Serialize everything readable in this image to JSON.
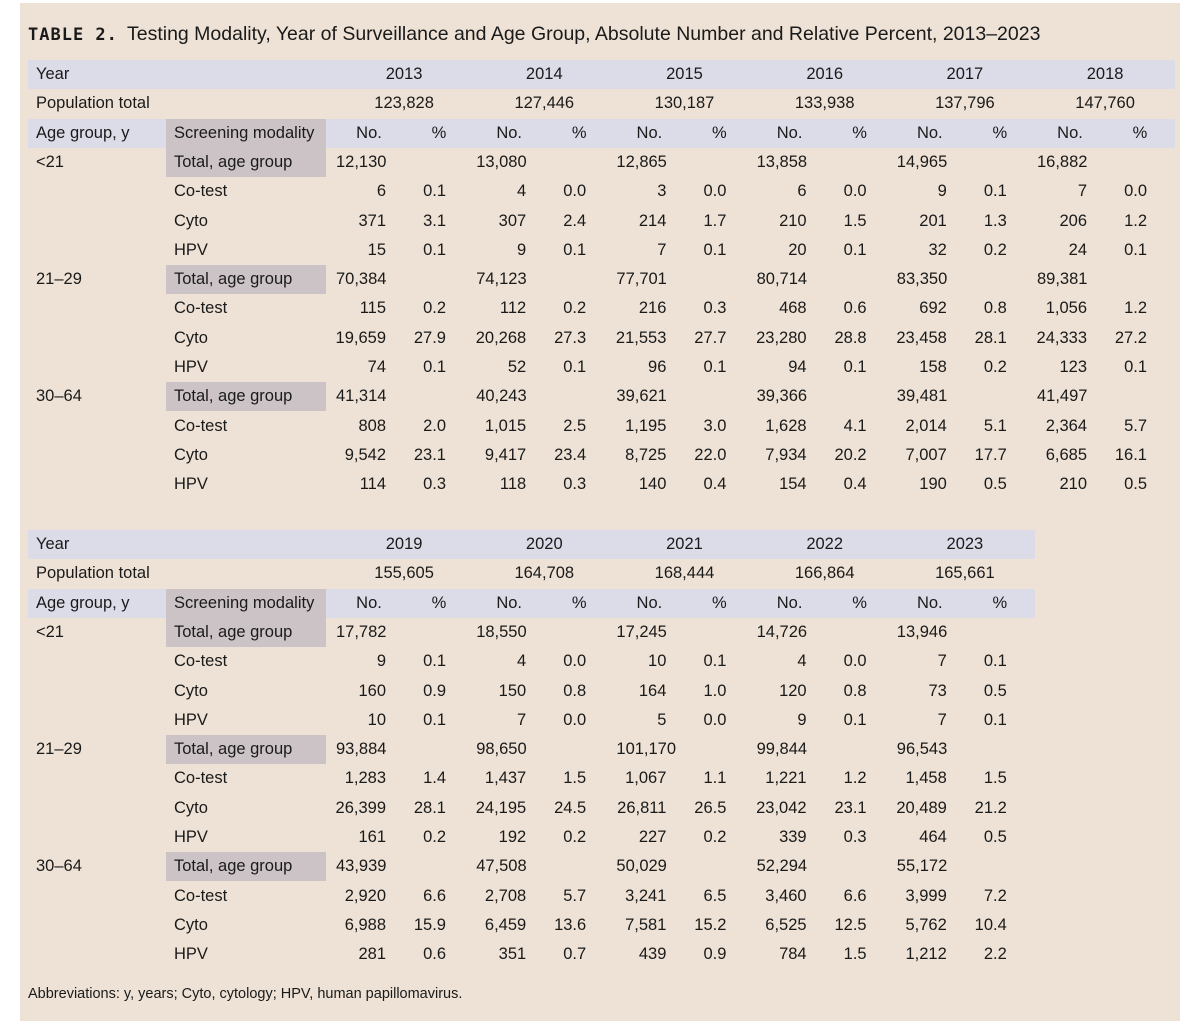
{
  "title": {
    "label": "TABLE 2.",
    "text": "Testing Modality, Year of Surveillance and Age Group, Absolute Number and Relative Percent, 2013–2023"
  },
  "labels": {
    "year": "Year",
    "population_total": "Population total",
    "age_group": "Age group, y",
    "screening_modality": "Screening modality",
    "no": "No.",
    "pct": "%"
  },
  "blocks": [
    {
      "years": [
        "2013",
        "2014",
        "2015",
        "2016",
        "2017",
        "2018"
      ],
      "population": [
        "123,828",
        "127,446",
        "130,187",
        "133,938",
        "137,796",
        "147,760"
      ],
      "groups": [
        {
          "age": "<21",
          "rows": [
            {
              "modality": "Total, age group",
              "values": [
                [
                  "12,130",
                  ""
                ],
                [
                  "13,080",
                  ""
                ],
                [
                  "12,865",
                  ""
                ],
                [
                  "13,858",
                  ""
                ],
                [
                  "14,965",
                  ""
                ],
                [
                  "16,882",
                  ""
                ]
              ]
            },
            {
              "modality": "Co-test",
              "values": [
                [
                  "6",
                  "0.1"
                ],
                [
                  "4",
                  "0.0"
                ],
                [
                  "3",
                  "0.0"
                ],
                [
                  "6",
                  "0.0"
                ],
                [
                  "9",
                  "0.1"
                ],
                [
                  "7",
                  "0.0"
                ]
              ]
            },
            {
              "modality": "Cyto",
              "values": [
                [
                  "371",
                  "3.1"
                ],
                [
                  "307",
                  "2.4"
                ],
                [
                  "214",
                  "1.7"
                ],
                [
                  "210",
                  "1.5"
                ],
                [
                  "201",
                  "1.3"
                ],
                [
                  "206",
                  "1.2"
                ]
              ]
            },
            {
              "modality": "HPV",
              "values": [
                [
                  "15",
                  "0.1"
                ],
                [
                  "9",
                  "0.1"
                ],
                [
                  "7",
                  "0.1"
                ],
                [
                  "20",
                  "0.1"
                ],
                [
                  "32",
                  "0.2"
                ],
                [
                  "24",
                  "0.1"
                ]
              ]
            }
          ]
        },
        {
          "age": "21–29",
          "rows": [
            {
              "modality": "Total, age group",
              "values": [
                [
                  "70,384",
                  ""
                ],
                [
                  "74,123",
                  ""
                ],
                [
                  "77,701",
                  ""
                ],
                [
                  "80,714",
                  ""
                ],
                [
                  "83,350",
                  ""
                ],
                [
                  "89,381",
                  ""
                ]
              ]
            },
            {
              "modality": "Co-test",
              "values": [
                [
                  "115",
                  "0.2"
                ],
                [
                  "112",
                  "0.2"
                ],
                [
                  "216",
                  "0.3"
                ],
                [
                  "468",
                  "0.6"
                ],
                [
                  "692",
                  "0.8"
                ],
                [
                  "1,056",
                  "1.2"
                ]
              ]
            },
            {
              "modality": "Cyto",
              "values": [
                [
                  "19,659",
                  "27.9"
                ],
                [
                  "20,268",
                  "27.3"
                ],
                [
                  "21,553",
                  "27.7"
                ],
                [
                  "23,280",
                  "28.8"
                ],
                [
                  "23,458",
                  "28.1"
                ],
                [
                  "24,333",
                  "27.2"
                ]
              ]
            },
            {
              "modality": "HPV",
              "values": [
                [
                  "74",
                  "0.1"
                ],
                [
                  "52",
                  "0.1"
                ],
                [
                  "96",
                  "0.1"
                ],
                [
                  "94",
                  "0.1"
                ],
                [
                  "158",
                  "0.2"
                ],
                [
                  "123",
                  "0.1"
                ]
              ]
            }
          ]
        },
        {
          "age": "30–64",
          "rows": [
            {
              "modality": "Total, age group",
              "values": [
                [
                  "41,314",
                  ""
                ],
                [
                  "40,243",
                  ""
                ],
                [
                  "39,621",
                  ""
                ],
                [
                  "39,366",
                  ""
                ],
                [
                  "39,481",
                  ""
                ],
                [
                  "41,497",
                  ""
                ]
              ]
            },
            {
              "modality": "Co-test",
              "values": [
                [
                  "808",
                  "2.0"
                ],
                [
                  "1,015",
                  "2.5"
                ],
                [
                  "1,195",
                  "3.0"
                ],
                [
                  "1,628",
                  "4.1"
                ],
                [
                  "2,014",
                  "5.1"
                ],
                [
                  "2,364",
                  "5.7"
                ]
              ]
            },
            {
              "modality": "Cyto",
              "values": [
                [
                  "9,542",
                  "23.1"
                ],
                [
                  "9,417",
                  "23.4"
                ],
                [
                  "8,725",
                  "22.0"
                ],
                [
                  "7,934",
                  "20.2"
                ],
                [
                  "7,007",
                  "17.7"
                ],
                [
                  "6,685",
                  "16.1"
                ]
              ]
            },
            {
              "modality": "HPV",
              "values": [
                [
                  "114",
                  "0.3"
                ],
                [
                  "118",
                  "0.3"
                ],
                [
                  "140",
                  "0.4"
                ],
                [
                  "154",
                  "0.4"
                ],
                [
                  "190",
                  "0.5"
                ],
                [
                  "210",
                  "0.5"
                ]
              ]
            }
          ]
        }
      ]
    },
    {
      "years": [
        "2019",
        "2020",
        "2021",
        "2022",
        "2023"
      ],
      "population": [
        "155,605",
        "164,708",
        "168,444",
        "166,864",
        "165,661"
      ],
      "groups": [
        {
          "age": "<21",
          "rows": [
            {
              "modality": "Total, age group",
              "values": [
                [
                  "17,782",
                  ""
                ],
                [
                  "18,550",
                  ""
                ],
                [
                  "17,245",
                  ""
                ],
                [
                  "14,726",
                  ""
                ],
                [
                  "13,946",
                  ""
                ]
              ]
            },
            {
              "modality": "Co-test",
              "values": [
                [
                  "9",
                  "0.1"
                ],
                [
                  "4",
                  "0.0"
                ],
                [
                  "10",
                  "0.1"
                ],
                [
                  "4",
                  "0.0"
                ],
                [
                  "7",
                  "0.1"
                ]
              ]
            },
            {
              "modality": "Cyto",
              "values": [
                [
                  "160",
                  "0.9"
                ],
                [
                  "150",
                  "0.8"
                ],
                [
                  "164",
                  "1.0"
                ],
                [
                  "120",
                  "0.8"
                ],
                [
                  "73",
                  "0.5"
                ]
              ]
            },
            {
              "modality": "HPV",
              "values": [
                [
                  "10",
                  "0.1"
                ],
                [
                  "7",
                  "0.0"
                ],
                [
                  "5",
                  "0.0"
                ],
                [
                  "9",
                  "0.1"
                ],
                [
                  "7",
                  "0.1"
                ]
              ]
            }
          ]
        },
        {
          "age": "21–29",
          "rows": [
            {
              "modality": "Total, age group",
              "values": [
                [
                  "93,884",
                  ""
                ],
                [
                  "98,650",
                  ""
                ],
                [
                  "101,170",
                  ""
                ],
                [
                  "99,844",
                  ""
                ],
                [
                  "96,543",
                  ""
                ]
              ]
            },
            {
              "modality": "Co-test",
              "values": [
                [
                  "1,283",
                  "1.4"
                ],
                [
                  "1,437",
                  "1.5"
                ],
                [
                  "1,067",
                  "1.1"
                ],
                [
                  "1,221",
                  "1.2"
                ],
                [
                  "1,458",
                  "1.5"
                ]
              ]
            },
            {
              "modality": "Cyto",
              "values": [
                [
                  "26,399",
                  "28.1"
                ],
                [
                  "24,195",
                  "24.5"
                ],
                [
                  "26,811",
                  "26.5"
                ],
                [
                  "23,042",
                  "23.1"
                ],
                [
                  "20,489",
                  "21.2"
                ]
              ]
            },
            {
              "modality": "HPV",
              "values": [
                [
                  "161",
                  "0.2"
                ],
                [
                  "192",
                  "0.2"
                ],
                [
                  "227",
                  "0.2"
                ],
                [
                  "339",
                  "0.3"
                ],
                [
                  "464",
                  "0.5"
                ]
              ]
            }
          ]
        },
        {
          "age": "30–64",
          "rows": [
            {
              "modality": "Total, age group",
              "values": [
                [
                  "43,939",
                  ""
                ],
                [
                  "47,508",
                  ""
                ],
                [
                  "50,029",
                  ""
                ],
                [
                  "52,294",
                  ""
                ],
                [
                  "55,172",
                  ""
                ]
              ]
            },
            {
              "modality": "Co-test",
              "values": [
                [
                  "2,920",
                  "6.6"
                ],
                [
                  "2,708",
                  "5.7"
                ],
                [
                  "3,241",
                  "6.5"
                ],
                [
                  "3,460",
                  "6.6"
                ],
                [
                  "3,999",
                  "7.2"
                ]
              ]
            },
            {
              "modality": "Cyto",
              "values": [
                [
                  "6,988",
                  "15.9"
                ],
                [
                  "6,459",
                  "13.6"
                ],
                [
                  "7,581",
                  "15.2"
                ],
                [
                  "6,525",
                  "12.5"
                ],
                [
                  "5,762",
                  "10.4"
                ]
              ]
            },
            {
              "modality": "HPV",
              "values": [
                [
                  "281",
                  "0.6"
                ],
                [
                  "351",
                  "0.7"
                ],
                [
                  "439",
                  "0.9"
                ],
                [
                  "784",
                  "1.5"
                ],
                [
                  "1,212",
                  "2.2"
                ]
              ]
            }
          ]
        }
      ]
    }
  ],
  "footer": "Abbreviations: y, years; Cyto, cytology; HPV, human papillomavirus."
}
